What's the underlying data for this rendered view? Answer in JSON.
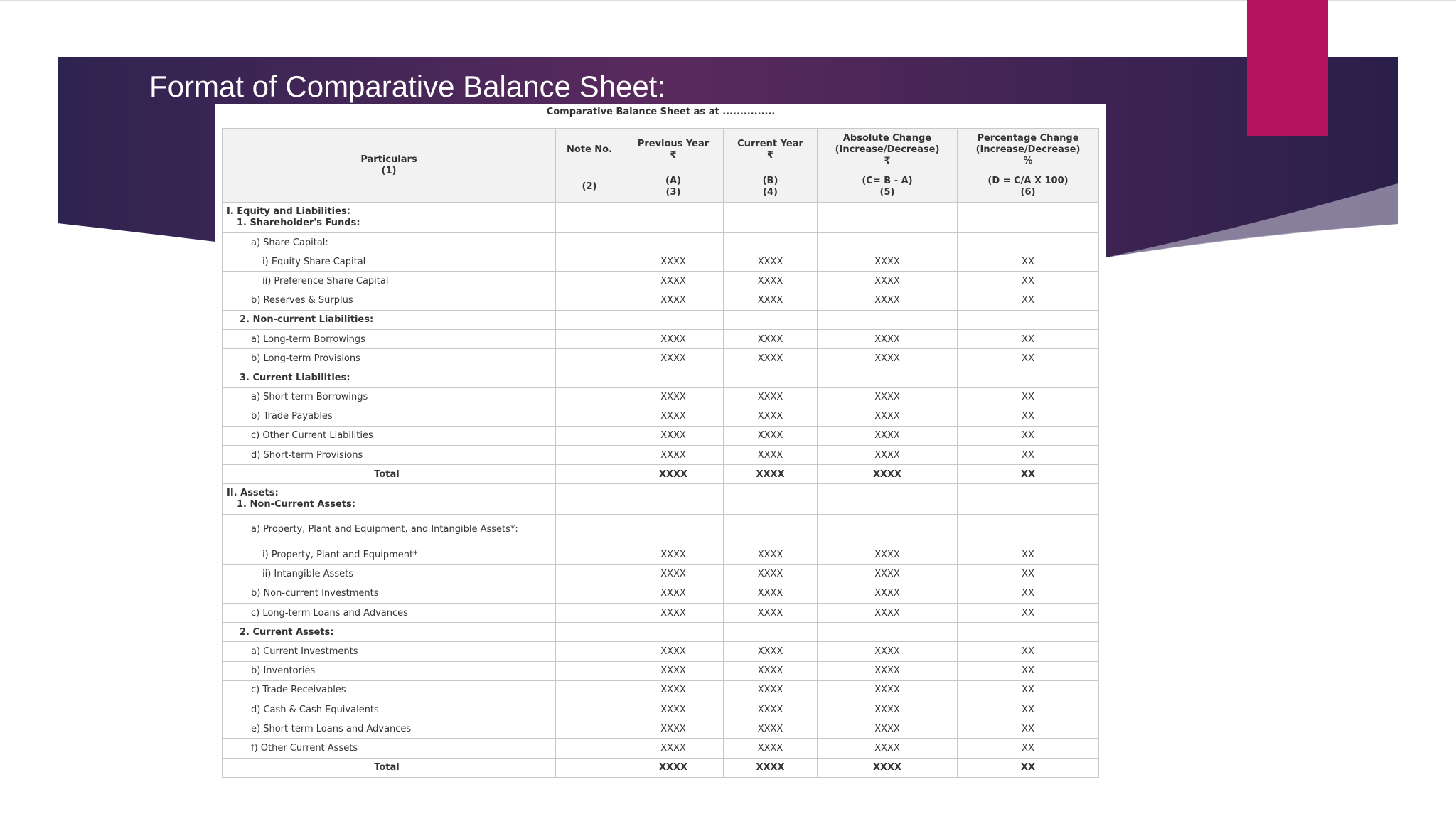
{
  "title": "Format of Comparative Balance Sheet:",
  "table": {
    "caption": "Comparative Balance Sheet as at ...............",
    "columns": [
      {
        "name": [
          "Particulars"
        ],
        "number": "(1)"
      },
      {
        "name": [
          "Note No."
        ],
        "number": "(2)"
      },
      {
        "name": [
          "Previous Year",
          "₹"
        ],
        "formula": "(A)",
        "number": "(3)"
      },
      {
        "name": [
          "Current Year",
          "₹"
        ],
        "formula": "(B)",
        "number": "(4)"
      },
      {
        "name": [
          "Absolute Change",
          "(Increase/Decrease)",
          "₹"
        ],
        "formula": "(C= B - A)",
        "number": "(5)"
      },
      {
        "name": [
          "Percentage Change",
          "(Increase/Decrease)",
          "%"
        ],
        "formula": "(D = C/A X 100)",
        "number": "(6)"
      }
    ],
    "rows": [
      {
        "label": "I. Equity and Liabilities:",
        "sublabel": "1. Shareholder's Funds:",
        "style": "section"
      },
      {
        "label": "a) Share Capital:",
        "style": "item"
      },
      {
        "label": "i) Equity Share Capital",
        "style": "subitem",
        "values": [
          "XXXX",
          "XXXX",
          "XXXX",
          "XX"
        ]
      },
      {
        "label": "ii) Preference Share Capital",
        "style": "subitem",
        "values": [
          "XXXX",
          "XXXX",
          "XXXX",
          "XX"
        ]
      },
      {
        "label": "b) Reserves & Surplus",
        "style": "item",
        "values": [
          "XXXX",
          "XXXX",
          "XXXX",
          "XX"
        ]
      },
      {
        "label": "2. Non-current Liabilities:",
        "style": "heading"
      },
      {
        "label": "a) Long-term Borrowings",
        "style": "item",
        "values": [
          "XXXX",
          "XXXX",
          "XXXX",
          "XX"
        ]
      },
      {
        "label": "b) Long-term Provisions",
        "style": "item",
        "values": [
          "XXXX",
          "XXXX",
          "XXXX",
          "XX"
        ]
      },
      {
        "label": "3. Current Liabilities:",
        "style": "heading"
      },
      {
        "label": "a) Short-term Borrowings",
        "style": "item",
        "values": [
          "XXXX",
          "XXXX",
          "XXXX",
          "XX"
        ]
      },
      {
        "label": "b) Trade Payables",
        "style": "item",
        "values": [
          "XXXX",
          "XXXX",
          "XXXX",
          "XX"
        ]
      },
      {
        "label": "c) Other Current Liabilities",
        "style": "item",
        "values": [
          "XXXX",
          "XXXX",
          "XXXX",
          "XX"
        ]
      },
      {
        "label": "d) Short-term Provisions",
        "style": "item",
        "values": [
          "XXXX",
          "XXXX",
          "XXXX",
          "XX"
        ]
      },
      {
        "label": "Total",
        "style": "total",
        "values": [
          "XXXX",
          "XXXX",
          "XXXX",
          "XX"
        ]
      },
      {
        "label": "II. Assets:",
        "sublabel": "1. Non-Current Assets:",
        "style": "section"
      },
      {
        "label": "a) Property, Plant and Equipment, and Intangible Assets*:",
        "style": "wrap"
      },
      {
        "label": "i) Property, Plant and Equipment*",
        "style": "subitem",
        "values": [
          "XXXX",
          "XXXX",
          "XXXX",
          "XX"
        ]
      },
      {
        "label": "ii) Intangible Assets",
        "style": "subitem",
        "values": [
          "XXXX",
          "XXXX",
          "XXXX",
          "XX"
        ]
      },
      {
        "label": "b) Non-current Investments",
        "style": "item",
        "values": [
          "XXXX",
          "XXXX",
          "XXXX",
          "XX"
        ]
      },
      {
        "label": "c) Long-term Loans and Advances",
        "style": "item",
        "values": [
          "XXXX",
          "XXXX",
          "XXXX",
          "XX"
        ]
      },
      {
        "label": "2. Current Assets:",
        "style": "heading"
      },
      {
        "label": "a) Current Investments",
        "style": "item",
        "values": [
          "XXXX",
          "XXXX",
          "XXXX",
          "XX"
        ]
      },
      {
        "label": "b) Inventories",
        "style": "item",
        "values": [
          "XXXX",
          "XXXX",
          "XXXX",
          "XX"
        ]
      },
      {
        "label": "c) Trade Receivables",
        "style": "item",
        "values": [
          "XXXX",
          "XXXX",
          "XXXX",
          "XX"
        ]
      },
      {
        "label": "d) Cash & Cash Equivalents",
        "style": "item",
        "values": [
          "XXXX",
          "XXXX",
          "XXXX",
          "XX"
        ]
      },
      {
        "label": "e) Short-term Loans and Advances",
        "style": "item",
        "values": [
          "XXXX",
          "XXXX",
          "XXXX",
          "XX"
        ]
      },
      {
        "label": "f) Other Current Assets",
        "style": "item",
        "values": [
          "XXXX",
          "XXXX",
          "XXXX",
          "XX"
        ]
      },
      {
        "label": "Total",
        "style": "total",
        "values": [
          "XXXX",
          "XXXX",
          "XXXX",
          "XX"
        ]
      }
    ]
  }
}
